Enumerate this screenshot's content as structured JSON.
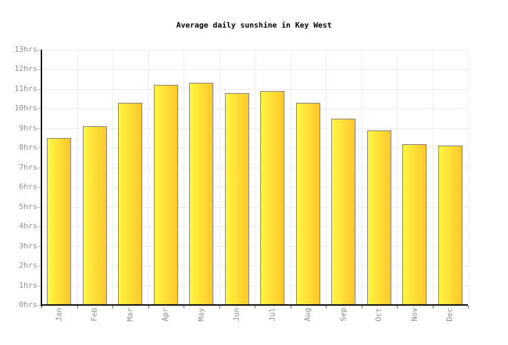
{
  "title": "Average daily sunshine in Key West",
  "chart_data": {
    "type": "bar",
    "title": "Average daily sunshine in Key West",
    "categories": [
      "Jan",
      "Feb",
      "Mar",
      "Apr",
      "May",
      "Jun",
      "Jul",
      "Aug",
      "Sep",
      "Oct",
      "Nov",
      "Dec"
    ],
    "values": [
      8.5,
      9.1,
      10.3,
      11.2,
      11.3,
      10.8,
      10.9,
      10.3,
      9.5,
      8.9,
      8.2,
      8.1
    ],
    "unit": "hrs",
    "xlabel": "",
    "ylabel": "",
    "ylim": [
      0,
      13
    ],
    "ytick_step": 1,
    "ytick_labels": [
      "0hrs",
      "1hrs",
      "2hrs",
      "3hrs",
      "4hrs",
      "5hrs",
      "6hrs",
      "7hrs",
      "8hrs",
      "9hrs",
      "10hrs",
      "11hrs",
      "12hrs",
      "13hrs"
    ],
    "grid": true,
    "legend": false,
    "colors": {
      "bar_gradient_left": "#FFF642",
      "bar_gradient_right": "#FDC72B",
      "bar_border": "#7E7E7E",
      "gridline": "#EDEDED",
      "axis": "#000000",
      "tick_label": "#8F8F8F",
      "y_tick_mark": "#BBBBBB",
      "x_tick_mark": "#666666",
      "background": "#FFFFFF"
    }
  }
}
